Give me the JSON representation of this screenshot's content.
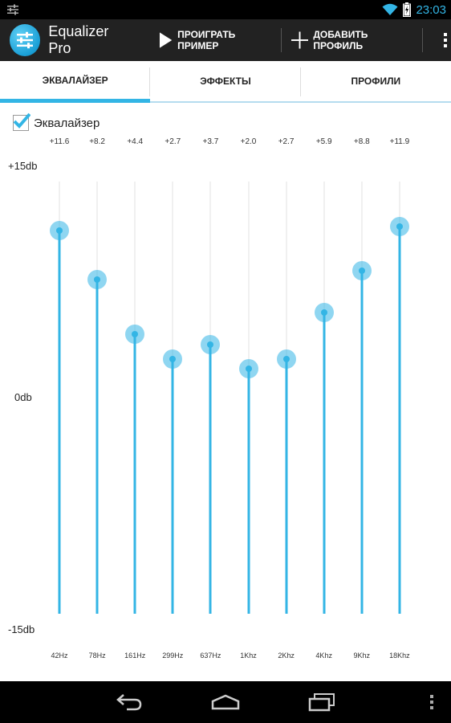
{
  "status_bar": {
    "time": "23:03",
    "icons": [
      "equalizer-notification-icon",
      "wifi-icon",
      "battery-icon"
    ]
  },
  "action_bar": {
    "app_title": "Equalizer Pro",
    "play_sample_label": "ПРОИГРАТЬ ПРИМЕР",
    "add_profile_label": "ДОБАВИТЬ ПРОФИЛЬ"
  },
  "tabs": [
    {
      "label": "ЭКВАЛАЙЗЕР",
      "active": true
    },
    {
      "label": "ЭФФЕКТЫ",
      "active": false
    },
    {
      "label": "ПРОФИЛИ",
      "active": false
    }
  ],
  "equalizer_toggle": {
    "label": "Эквалайзер",
    "checked": true
  },
  "scale": {
    "max_label": "+15db",
    "mid_label": "0db",
    "min_label": "-15db",
    "min": -15,
    "max": 15
  },
  "bands": [
    {
      "freq": "42Hz",
      "value": 11.6,
      "value_label": "+11.6"
    },
    {
      "freq": "78Hz",
      "value": 8.2,
      "value_label": "+8.2"
    },
    {
      "freq": "161Hz",
      "value": 4.4,
      "value_label": "+4.4"
    },
    {
      "freq": "299Hz",
      "value": 2.7,
      "value_label": "+2.7"
    },
    {
      "freq": "637Hz",
      "value": 3.7,
      "value_label": "+3.7"
    },
    {
      "freq": "1Khz",
      "value": 2.0,
      "value_label": "+2.0"
    },
    {
      "freq": "2Khz",
      "value": 2.7,
      "value_label": "+2.7"
    },
    {
      "freq": "4Khz",
      "value": 5.9,
      "value_label": "+5.9"
    },
    {
      "freq": "9Khz",
      "value": 8.8,
      "value_label": "+8.8"
    },
    {
      "freq": "18Khz",
      "value": 11.9,
      "value_label": "+11.9"
    }
  ],
  "colors": {
    "accent": "#33b5e5",
    "actionbar": "#222222",
    "statusbar": "#000000"
  }
}
